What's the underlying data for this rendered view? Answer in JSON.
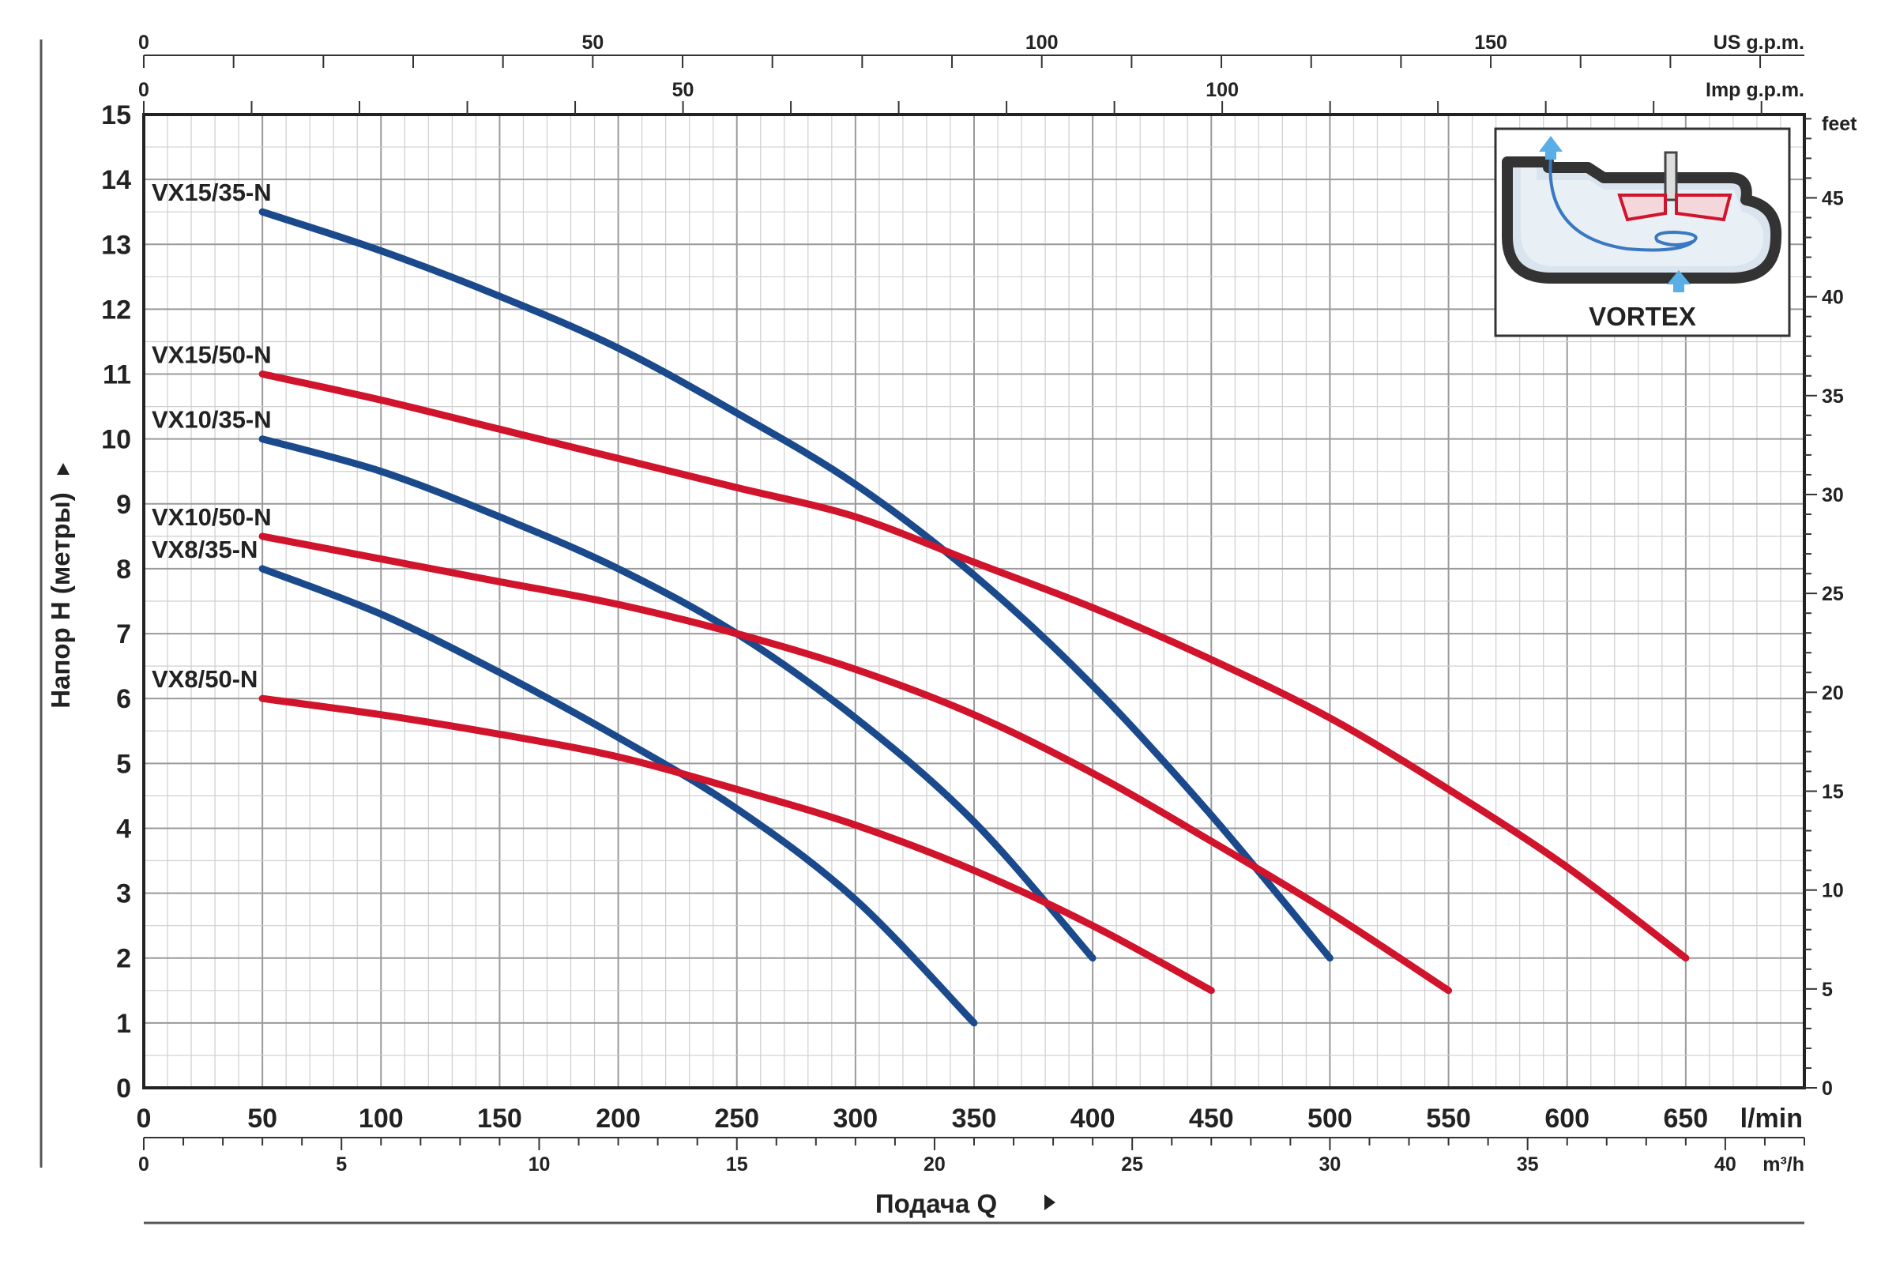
{
  "chart_data": {
    "type": "line",
    "xlabel": "Подача Q",
    "ylabel": "Напор H (метры)",
    "x_unit": "l/min",
    "xlim": [
      0,
      700
    ],
    "ylim": [
      0,
      15
    ],
    "x_ticks": [
      0,
      50,
      100,
      150,
      200,
      250,
      300,
      350,
      400,
      450,
      500,
      550,
      600,
      650
    ],
    "y_ticks": [
      0,
      1,
      2,
      3,
      4,
      5,
      6,
      7,
      8,
      9,
      10,
      11,
      12,
      13,
      14,
      15
    ],
    "grid": true,
    "secondary_axes": {
      "m3h": {
        "unit": "m³/h",
        "ticks": [
          0,
          5,
          10,
          15,
          20,
          25,
          30,
          35,
          40
        ]
      },
      "us_gpm": {
        "unit": "US g.p.m.",
        "ticks": [
          0,
          50,
          100,
          150
        ]
      },
      "imp_gpm": {
        "unit": "Imp g.p.m.",
        "ticks": [
          0,
          50,
          100
        ]
      },
      "feet": {
        "unit": "feet",
        "ticks": [
          0,
          5,
          10,
          15,
          20,
          25,
          30,
          35,
          40,
          45
        ]
      }
    },
    "series": [
      {
        "name": "VX15/35-N",
        "color": "#1b4a8c",
        "x": [
          50,
          100,
          150,
          200,
          250,
          300,
          350,
          400,
          450,
          500
        ],
        "y": [
          13.5,
          12.9,
          12.2,
          11.4,
          10.4,
          9.3,
          7.9,
          6.2,
          4.2,
          2.0
        ]
      },
      {
        "name": "VX15/50-N",
        "color": "#d0142c",
        "x": [
          50,
          100,
          150,
          200,
          250,
          300,
          350,
          400,
          450,
          500,
          550,
          600,
          650
        ],
        "y": [
          11.0,
          10.6,
          10.15,
          9.7,
          9.25,
          8.8,
          8.1,
          7.4,
          6.6,
          5.7,
          4.6,
          3.4,
          2.0
        ]
      },
      {
        "name": "VX10/35-N",
        "color": "#1b4a8c",
        "x": [
          50,
          100,
          150,
          200,
          250,
          300,
          350,
          400
        ],
        "y": [
          10.0,
          9.5,
          8.8,
          8.0,
          7.0,
          5.7,
          4.1,
          2.0
        ]
      },
      {
        "name": "VX10/50-N",
        "color": "#d0142c",
        "x": [
          50,
          100,
          150,
          200,
          250,
          300,
          350,
          400,
          450,
          500,
          550
        ],
        "y": [
          8.5,
          8.15,
          7.8,
          7.45,
          7.0,
          6.45,
          5.75,
          4.85,
          3.8,
          2.7,
          1.5
        ]
      },
      {
        "name": "VX8/35-N",
        "color": "#1b4a8c",
        "x": [
          50,
          100,
          150,
          200,
          250,
          300,
          350
        ],
        "y": [
          8.0,
          7.3,
          6.4,
          5.4,
          4.3,
          2.9,
          1.0
        ]
      },
      {
        "name": "VX8/50-N",
        "color": "#d0142c",
        "x": [
          50,
          100,
          150,
          200,
          250,
          300,
          350,
          400,
          450
        ],
        "y": [
          6.0,
          5.75,
          5.45,
          5.1,
          4.6,
          4.05,
          3.35,
          2.5,
          1.5
        ]
      }
    ],
    "inset": {
      "title": "VORTEX"
    }
  }
}
